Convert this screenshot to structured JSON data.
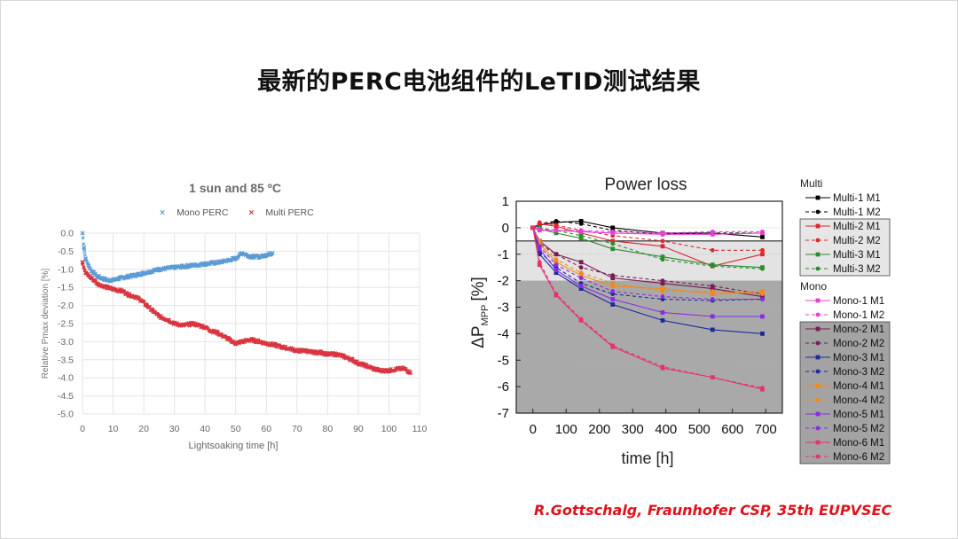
{
  "slide": {
    "title": "最新的PERC电池组件的LeTID测试结果",
    "citation": "R.Gottschalg, Fraunhofer CSP, 35th EUPVSEC"
  },
  "chart_data": [
    {
      "type": "scatter",
      "title": "1 sun and 85 ºC",
      "xlabel": "Lightsoaking time [h]",
      "ylabel": "Relative Pmax deviation [%]",
      "xlim": [
        0,
        110
      ],
      "ylim": [
        -5.0,
        0.0
      ],
      "x_ticks": [
        0,
        10,
        20,
        30,
        40,
        50,
        60,
        70,
        80,
        90,
        100,
        110
      ],
      "y_ticks": [
        0.0,
        -0.5,
        -1.0,
        -1.5,
        -2.0,
        -2.5,
        -3.0,
        -3.5,
        -4.0,
        -4.5,
        -5.0
      ],
      "y_tick_labels": [
        "0.0",
        "-0.5",
        "-1.0",
        "-1.5",
        "-2.0",
        "-2.5",
        "-3.0",
        "-3.5",
        "-4.0",
        "-4.5",
        "-5.0"
      ],
      "grid": true,
      "legend_position": "top",
      "series": [
        {
          "name": "Mono PERC",
          "color": "#5b9bd5",
          "marker": "×",
          "x": [
            0,
            0.5,
            1,
            2,
            3,
            5,
            8,
            10,
            12,
            15,
            18,
            20,
            25,
            30,
            35,
            40,
            45,
            50,
            52,
            55,
            58,
            60,
            62
          ],
          "y": [
            0.0,
            -0.4,
            -0.7,
            -0.9,
            -1.05,
            -1.2,
            -1.3,
            -1.3,
            -1.25,
            -1.2,
            -1.15,
            -1.1,
            -1.0,
            -0.95,
            -0.9,
            -0.85,
            -0.8,
            -0.7,
            -0.55,
            -0.65,
            -0.65,
            -0.6,
            -0.55
          ]
        },
        {
          "name": "Multi PERC",
          "color": "#d9343f",
          "marker": "×",
          "x": [
            0,
            1,
            3,
            5,
            8,
            10,
            13,
            15,
            17,
            19,
            21,
            23,
            25,
            28,
            30,
            33,
            36,
            38,
            40,
            42,
            44,
            46,
            48,
            50,
            52,
            55,
            58,
            60,
            63,
            65,
            68,
            70,
            73,
            75,
            78,
            80,
            83,
            85,
            88,
            90,
            92,
            95,
            97,
            100,
            103,
            105,
            107
          ],
          "y": [
            -0.8,
            -1.1,
            -1.25,
            -1.4,
            -1.5,
            -1.55,
            -1.6,
            -1.7,
            -1.75,
            -1.85,
            -2.0,
            -2.15,
            -2.3,
            -2.4,
            -2.5,
            -2.55,
            -2.5,
            -2.55,
            -2.6,
            -2.7,
            -2.75,
            -2.85,
            -2.95,
            -3.05,
            -3.0,
            -2.95,
            -3.0,
            -3.05,
            -3.1,
            -3.15,
            -3.2,
            -3.25,
            -3.25,
            -3.3,
            -3.3,
            -3.35,
            -3.35,
            -3.4,
            -3.5,
            -3.6,
            -3.65,
            -3.75,
            -3.8,
            -3.8,
            -3.75,
            -3.75,
            -3.85
          ]
        }
      ]
    },
    {
      "type": "line",
      "title": "Power loss",
      "xlabel": "time [h]",
      "ylabel": "ΔP",
      "ylabel_sub": "MPP",
      "ylabel_unit": "[%]",
      "xlim": [
        -50,
        750
      ],
      "ylim": [
        -7,
        1
      ],
      "x_ticks": [
        0,
        100,
        200,
        300,
        400,
        500,
        600,
        700
      ],
      "y_ticks": [
        1,
        0,
        -1,
        -2,
        -3,
        -4,
        -5,
        -6,
        -7
      ],
      "shaded_bands": [
        {
          "from": -0.5,
          "to": -2.0,
          "color": "#e3e3e3"
        },
        {
          "from": -2.0,
          "to": -7.0,
          "color": "#a9a9a9"
        }
      ],
      "x": [
        0,
        20,
        70,
        145,
        240,
        390,
        540,
        690
      ],
      "legend_groups": [
        {
          "name": "Multi",
          "series_from": 0,
          "series_to": 6
        },
        {
          "name": "Mono",
          "series_from": 6,
          "series_to": 18
        }
      ],
      "series": [
        {
          "name": "Multi-1 M1",
          "color": "#000000",
          "dash": false,
          "y": [
            0,
            0.1,
            0.2,
            0.25,
            0.0,
            -0.2,
            -0.2,
            -0.35
          ],
          "boxed": false
        },
        {
          "name": "Multi-1 M2",
          "color": "#000000",
          "dash": true,
          "y": [
            0,
            0.15,
            0.25,
            0.15,
            -0.1,
            -0.25,
            -0.2,
            -0.2
          ],
          "boxed": false
        },
        {
          "name": "Multi-2 M1",
          "color": "#e0262e",
          "dash": false,
          "y": [
            0,
            0.15,
            0.05,
            -0.2,
            -0.5,
            -0.7,
            -1.45,
            -1.0
          ],
          "boxed": true
        },
        {
          "name": "Multi-2 M2",
          "color": "#e0262e",
          "dash": true,
          "y": [
            0,
            0.2,
            0.1,
            -0.1,
            -0.3,
            -0.5,
            -0.85,
            -0.85
          ],
          "boxed": true
        },
        {
          "name": "Multi-3 M1",
          "color": "#2e8b2e",
          "dash": false,
          "y": [
            0,
            -0.05,
            -0.2,
            -0.4,
            -0.8,
            -1.1,
            -1.4,
            -1.5
          ],
          "boxed": true
        },
        {
          "name": "Multi-3 M2",
          "color": "#2e8b2e",
          "dash": true,
          "y": [
            0,
            0.0,
            -0.1,
            -0.3,
            -0.6,
            -1.2,
            -1.45,
            -1.55
          ],
          "boxed": true
        },
        {
          "name": "Mono-1 M1",
          "color": "#e83fd0",
          "dash": false,
          "y": [
            0,
            -0.1,
            -0.1,
            -0.15,
            -0.2,
            -0.25,
            -0.25,
            -0.2
          ],
          "boxed": false
        },
        {
          "name": "Mono-1 M2",
          "color": "#e83fd0",
          "dash": true,
          "y": [
            0,
            -0.05,
            -0.1,
            -0.1,
            -0.15,
            -0.2,
            -0.15,
            -0.15
          ],
          "boxed": false
        },
        {
          "name": "Mono-2 M1",
          "color": "#7a1b56",
          "dash": false,
          "y": [
            0,
            -0.5,
            -1.0,
            -1.3,
            -1.9,
            -2.1,
            -2.3,
            -2.6
          ],
          "boxed": true
        },
        {
          "name": "Mono-2 M2",
          "color": "#7a1b56",
          "dash": true,
          "y": [
            0,
            -0.6,
            -1.0,
            -1.5,
            -1.8,
            -2.0,
            -2.2,
            -2.5
          ],
          "boxed": true
        },
        {
          "name": "Mono-3 M1",
          "color": "#1c2a9c",
          "dash": false,
          "y": [
            0,
            -1.0,
            -1.7,
            -2.3,
            -2.9,
            -3.5,
            -3.85,
            -4.0
          ],
          "boxed": true
        },
        {
          "name": "Mono-3 M2",
          "color": "#1c2a9c",
          "dash": true,
          "y": [
            0,
            -0.9,
            -1.5,
            -2.1,
            -2.5,
            -2.7,
            -2.75,
            -2.7
          ],
          "boxed": true
        },
        {
          "name": "Mono-4 M1",
          "color": "#f08a1c",
          "dash": false,
          "y": [
            0,
            -0.6,
            -1.3,
            -1.8,
            -2.2,
            -2.3,
            -2.5,
            -2.4
          ],
          "boxed": true
        },
        {
          "name": "Mono-4 M2",
          "color": "#f08a1c",
          "dash": true,
          "y": [
            0,
            -0.5,
            -1.2,
            -1.7,
            -2.1,
            -2.4,
            -2.4,
            -2.5
          ],
          "boxed": true
        },
        {
          "name": "Mono-5 M1",
          "color": "#8a2be2",
          "dash": false,
          "y": [
            0,
            -0.8,
            -1.6,
            -2.2,
            -2.7,
            -3.2,
            -3.35,
            -3.35
          ],
          "boxed": true
        },
        {
          "name": "Mono-5 M2",
          "color": "#8a2be2",
          "dash": true,
          "y": [
            0,
            -0.7,
            -1.4,
            -1.9,
            -2.4,
            -2.6,
            -2.7,
            -2.7
          ],
          "boxed": true
        },
        {
          "name": "Mono-6 M1",
          "color": "#e8326e",
          "dash": false,
          "y": [
            0,
            -1.4,
            -2.55,
            -3.5,
            -4.5,
            -5.3,
            -5.65,
            -6.1
          ],
          "boxed": true
        },
        {
          "name": "Mono-6 M2",
          "color": "#e8326e",
          "dash": true,
          "y": [
            0,
            -1.3,
            -2.5,
            -3.45,
            -4.45,
            -5.25,
            -5.65,
            -6.05
          ],
          "boxed": true
        }
      ]
    }
  ]
}
